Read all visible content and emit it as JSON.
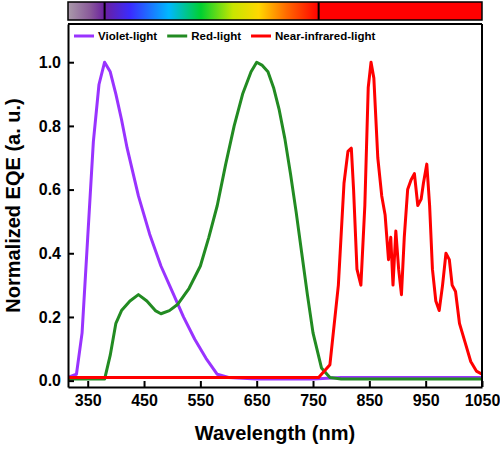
{
  "chart_data": {
    "type": "line",
    "x_label": "Wavelength (nm)",
    "y_label": "Normalized EQE (a. u.)",
    "xlim": [
      315,
      1050
    ],
    "xticks": [
      350,
      450,
      550,
      650,
      750,
      850,
      950,
      1050
    ],
    "ylim": [
      -0.02,
      1.12
    ],
    "yticks": [
      {
        "value": 0,
        "label": "0.0"
      },
      0.2,
      0.4,
      0.6,
      0.8,
      {
        "value": 1,
        "label": "1.0"
      }
    ],
    "grid": false,
    "legend": "top",
    "spectrum_edges": [
      380,
      760
    ],
    "series": [
      {
        "name": "Violet-light",
        "color": "#9933ff",
        "x": [
          315,
          330,
          340,
          350,
          360,
          370,
          380,
          390,
          400,
          410,
          420,
          440,
          460,
          480,
          500,
          520,
          540,
          560,
          580,
          600,
          650,
          700,
          750,
          800,
          850,
          900,
          950,
          1000,
          1050
        ],
        "values": [
          0.01,
          0.02,
          0.15,
          0.45,
          0.75,
          0.93,
          1.0,
          0.97,
          0.9,
          0.82,
          0.73,
          0.58,
          0.46,
          0.36,
          0.28,
          0.2,
          0.13,
          0.07,
          0.02,
          0.01,
          0.005,
          0.005,
          0.005,
          0.01,
          0.01,
          0.01,
          0.01,
          0.01,
          0.01
        ]
      },
      {
        "name": "Red-light",
        "color": "#228b22",
        "x": [
          315,
          350,
          380,
          390,
          400,
          410,
          425,
          440,
          455,
          470,
          480,
          495,
          510,
          530,
          550,
          565,
          580,
          595,
          610,
          625,
          640,
          650,
          660,
          670,
          680,
          690,
          700,
          710,
          720,
          730,
          740,
          750,
          765,
          780,
          800,
          850,
          900,
          950,
          1000,
          1050
        ],
        "values": [
          0.005,
          0.005,
          0.005,
          0.08,
          0.18,
          0.22,
          0.25,
          0.27,
          0.25,
          0.22,
          0.21,
          0.22,
          0.24,
          0.29,
          0.36,
          0.45,
          0.55,
          0.68,
          0.8,
          0.9,
          0.97,
          1.0,
          0.99,
          0.97,
          0.92,
          0.85,
          0.76,
          0.65,
          0.53,
          0.4,
          0.27,
          0.15,
          0.04,
          0.01,
          0.005,
          0.005,
          0.005,
          0.005,
          0.005,
          0.005
        ]
      },
      {
        "name": "Near-infrared-light",
        "color": "#ff0000",
        "x": [
          315,
          400,
          500,
          600,
          700,
          760,
          780,
          795,
          805,
          812,
          818,
          822,
          828,
          835,
          842,
          848,
          853,
          858,
          865,
          872,
          878,
          884,
          888,
          892,
          897,
          902,
          907,
          912,
          918,
          924,
          930,
          936,
          942,
          946,
          952,
          957,
          962,
          968,
          974,
          980,
          986,
          992,
          997,
          1003,
          1010,
          1020,
          1030,
          1040,
          1050
        ],
        "values": [
          0.01,
          0.01,
          0.01,
          0.01,
          0.01,
          0.01,
          0.05,
          0.3,
          0.62,
          0.72,
          0.73,
          0.6,
          0.35,
          0.3,
          0.55,
          0.92,
          1.0,
          0.95,
          0.7,
          0.58,
          0.52,
          0.38,
          0.45,
          0.3,
          0.47,
          0.35,
          0.27,
          0.45,
          0.6,
          0.63,
          0.65,
          0.55,
          0.57,
          0.62,
          0.68,
          0.55,
          0.35,
          0.25,
          0.22,
          0.3,
          0.4,
          0.38,
          0.3,
          0.28,
          0.18,
          0.12,
          0.06,
          0.03,
          0.02
        ]
      }
    ]
  }
}
